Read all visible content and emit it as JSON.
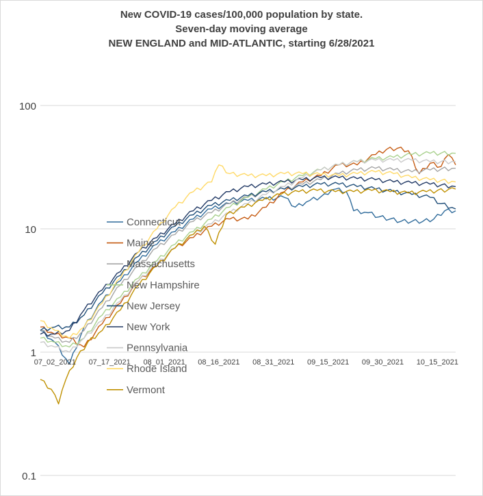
{
  "chart_data": {
    "type": "line",
    "title_lines": [
      "New COVID-19 cases/100,000 population by state.",
      "Seven-day moving average",
      "NEW ENGLAND and MID-ATLANTIC, starting 6/28/2021"
    ],
    "xlabel": "",
    "ylabel": "",
    "y_scale": "log",
    "ylim": [
      0.1,
      100
    ],
    "y_ticks": [
      100,
      10,
      1,
      0.1
    ],
    "y_tick_labels": [
      "100",
      "10",
      "1",
      "0.1"
    ],
    "x_range": [
      "2021-06-28",
      "2021-10-20"
    ],
    "x_tick_dates": [
      "2021-07-02",
      "2021-07-17",
      "2021-08-01",
      "2021-08-16",
      "2021-08-31",
      "2021-09-15",
      "2021-09-30",
      "2021-10-15"
    ],
    "x_tick_labels": [
      "07_02_2021",
      "07_17_2021",
      "08_01_2021",
      "08_16_2021",
      "08_31_2021",
      "09_15_2021",
      "09_30_2021",
      "10_15_2021"
    ],
    "grid": "horizontal",
    "legend_position": "left, inside plot",
    "series": [
      {
        "name": "Connecticut",
        "color": "#2e6a9a",
        "points": [
          [
            "2021-06-28",
            1.5
          ],
          [
            "2021-07-02",
            1.2
          ],
          [
            "2021-07-06",
            0.8
          ],
          [
            "2021-07-10",
            1.6
          ],
          [
            "2021-07-15",
            2.6
          ],
          [
            "2021-07-20",
            3.8
          ],
          [
            "2021-07-25",
            5.5
          ],
          [
            "2021-07-30",
            7.5
          ],
          [
            "2021-08-04",
            9.5
          ],
          [
            "2021-08-09",
            12
          ],
          [
            "2021-08-14",
            14.5
          ],
          [
            "2021-08-19",
            16
          ],
          [
            "2021-08-24",
            17
          ],
          [
            "2021-08-29",
            17.5
          ],
          [
            "2021-09-03",
            18
          ],
          [
            "2021-09-06",
            15
          ],
          [
            "2021-09-10",
            17
          ],
          [
            "2021-09-15",
            19
          ],
          [
            "2021-09-17",
            21
          ],
          [
            "2021-09-20",
            20
          ],
          [
            "2021-09-22",
            14
          ],
          [
            "2021-09-26",
            13.5
          ],
          [
            "2021-09-29",
            12.5
          ],
          [
            "2021-10-02",
            12
          ],
          [
            "2021-10-05",
            11.5
          ],
          [
            "2021-10-08",
            11.5
          ],
          [
            "2021-10-11",
            11.5
          ],
          [
            "2021-10-14",
            12
          ],
          [
            "2021-10-17",
            14
          ],
          [
            "2021-10-20",
            14
          ]
        ]
      },
      {
        "name": "Maine",
        "color": "#c55a11",
        "points": [
          [
            "2021-06-28",
            1.6
          ],
          [
            "2021-07-02",
            1.4
          ],
          [
            "2021-07-06",
            1.3
          ],
          [
            "2021-07-10",
            1.1
          ],
          [
            "2021-07-15",
            1.7
          ],
          [
            "2021-07-20",
            2.5
          ],
          [
            "2021-07-25",
            3.8
          ],
          [
            "2021-07-30",
            5
          ],
          [
            "2021-08-04",
            7
          ],
          [
            "2021-08-09",
            8.5
          ],
          [
            "2021-08-14",
            10.5
          ],
          [
            "2021-08-19",
            12
          ],
          [
            "2021-08-24",
            12
          ],
          [
            "2021-08-29",
            15
          ],
          [
            "2021-09-03",
            20
          ],
          [
            "2021-09-08",
            24
          ],
          [
            "2021-09-13",
            27
          ],
          [
            "2021-09-18",
            33
          ],
          [
            "2021-09-23",
            33
          ],
          [
            "2021-09-28",
            40
          ],
          [
            "2021-10-01",
            44
          ],
          [
            "2021-10-04",
            45
          ],
          [
            "2021-10-07",
            43
          ],
          [
            "2021-10-10",
            28
          ],
          [
            "2021-10-13",
            34
          ],
          [
            "2021-10-16",
            32
          ],
          [
            "2021-10-18",
            40
          ],
          [
            "2021-10-20",
            33
          ]
        ]
      },
      {
        "name": "Massachusetts",
        "color": "#a5a5a5",
        "points": [
          [
            "2021-06-28",
            1.5
          ],
          [
            "2021-07-02",
            1.3
          ],
          [
            "2021-07-06",
            1.2
          ],
          [
            "2021-07-10",
            1.5
          ],
          [
            "2021-07-15",
            2.3
          ],
          [
            "2021-07-20",
            3.5
          ],
          [
            "2021-07-25",
            5
          ],
          [
            "2021-07-30",
            7
          ],
          [
            "2021-08-04",
            9
          ],
          [
            "2021-08-09",
            11.5
          ],
          [
            "2021-08-14",
            13.5
          ],
          [
            "2021-08-19",
            16
          ],
          [
            "2021-08-24",
            18
          ],
          [
            "2021-08-29",
            20
          ],
          [
            "2021-09-03",
            21
          ],
          [
            "2021-09-08",
            23
          ],
          [
            "2021-09-13",
            25
          ],
          [
            "2021-09-18",
            28
          ],
          [
            "2021-09-23",
            30
          ],
          [
            "2021-09-28",
            31
          ],
          [
            "2021-10-03",
            30
          ],
          [
            "2021-10-08",
            29
          ],
          [
            "2021-10-13",
            30
          ],
          [
            "2021-10-20",
            31
          ]
        ]
      },
      {
        "name": "New Hampshire",
        "color": "#a9d18e",
        "points": [
          [
            "2021-06-28",
            1.3
          ],
          [
            "2021-07-02",
            1.2
          ],
          [
            "2021-07-06",
            1.1
          ],
          [
            "2021-07-10",
            1.3
          ],
          [
            "2021-07-15",
            2
          ],
          [
            "2021-07-20",
            2.8
          ],
          [
            "2021-07-25",
            4
          ],
          [
            "2021-07-30",
            5.5
          ],
          [
            "2021-08-04",
            7.5
          ],
          [
            "2021-08-09",
            9.5
          ],
          [
            "2021-08-14",
            12
          ],
          [
            "2021-08-19",
            15
          ],
          [
            "2021-08-24",
            18
          ],
          [
            "2021-08-29",
            21
          ],
          [
            "2021-09-03",
            24
          ],
          [
            "2021-09-08",
            27
          ],
          [
            "2021-09-13",
            30
          ],
          [
            "2021-09-18",
            33
          ],
          [
            "2021-09-23",
            35
          ],
          [
            "2021-09-28",
            37
          ],
          [
            "2021-10-03",
            38
          ],
          [
            "2021-10-08",
            40
          ],
          [
            "2021-10-13",
            41
          ],
          [
            "2021-10-20",
            41
          ]
        ]
      },
      {
        "name": "New Jersey",
        "color": "#1f4e79",
        "points": [
          [
            "2021-06-28",
            1.5
          ],
          [
            "2021-07-02",
            1.6
          ],
          [
            "2021-07-06",
            1.6
          ],
          [
            "2021-07-10",
            2
          ],
          [
            "2021-07-15",
            3
          ],
          [
            "2021-07-20",
            4.2
          ],
          [
            "2021-07-25",
            6
          ],
          [
            "2021-07-30",
            8
          ],
          [
            "2021-08-04",
            10.5
          ],
          [
            "2021-08-09",
            13
          ],
          [
            "2021-08-14",
            15.5
          ],
          [
            "2021-08-19",
            17
          ],
          [
            "2021-08-24",
            18.5
          ],
          [
            "2021-08-29",
            20
          ],
          [
            "2021-09-03",
            21
          ],
          [
            "2021-09-08",
            22
          ],
          [
            "2021-09-13",
            23
          ],
          [
            "2021-09-18",
            23
          ],
          [
            "2021-09-23",
            22
          ],
          [
            "2021-09-28",
            21
          ],
          [
            "2021-10-03",
            20
          ],
          [
            "2021-10-08",
            19
          ],
          [
            "2021-10-13",
            18
          ],
          [
            "2021-10-16",
            16
          ],
          [
            "2021-10-20",
            14.5
          ]
        ]
      },
      {
        "name": "New York",
        "color": "#203864",
        "points": [
          [
            "2021-06-28",
            1.4
          ],
          [
            "2021-07-02",
            1.4
          ],
          [
            "2021-07-06",
            1.5
          ],
          [
            "2021-07-10",
            2.2
          ],
          [
            "2021-07-15",
            3.2
          ],
          [
            "2021-07-20",
            4.5
          ],
          [
            "2021-07-25",
            6.5
          ],
          [
            "2021-07-30",
            8.5
          ],
          [
            "2021-08-04",
            11
          ],
          [
            "2021-08-09",
            14
          ],
          [
            "2021-08-14",
            17
          ],
          [
            "2021-08-19",
            20
          ],
          [
            "2021-08-24",
            22
          ],
          [
            "2021-08-29",
            23
          ],
          [
            "2021-09-03",
            24
          ],
          [
            "2021-09-08",
            25
          ],
          [
            "2021-09-13",
            26
          ],
          [
            "2021-09-18",
            26
          ],
          [
            "2021-09-23",
            25.5
          ],
          [
            "2021-09-28",
            25
          ],
          [
            "2021-10-03",
            24
          ],
          [
            "2021-10-08",
            23.5
          ],
          [
            "2021-10-13",
            23
          ],
          [
            "2021-10-20",
            22
          ]
        ]
      },
      {
        "name": "Pennsylvania",
        "color": "#c9c9c9",
        "points": [
          [
            "2021-06-28",
            1.2
          ],
          [
            "2021-07-02",
            1.1
          ],
          [
            "2021-07-06",
            1.0
          ],
          [
            "2021-07-10",
            1.3
          ],
          [
            "2021-07-15",
            1.8
          ],
          [
            "2021-07-20",
            2.6
          ],
          [
            "2021-07-25",
            3.8
          ],
          [
            "2021-07-30",
            5.2
          ],
          [
            "2021-08-04",
            7
          ],
          [
            "2021-08-09",
            9
          ],
          [
            "2021-08-14",
            11
          ],
          [
            "2021-08-19",
            13.5
          ],
          [
            "2021-08-24",
            16
          ],
          [
            "2021-08-29",
            19
          ],
          [
            "2021-09-03",
            22
          ],
          [
            "2021-09-08",
            26
          ],
          [
            "2021-09-13",
            30
          ],
          [
            "2021-09-18",
            33
          ],
          [
            "2021-09-23",
            35
          ],
          [
            "2021-09-28",
            36
          ],
          [
            "2021-10-03",
            36
          ],
          [
            "2021-10-08",
            36
          ],
          [
            "2021-10-13",
            35
          ],
          [
            "2021-10-20",
            35
          ]
        ]
      },
      {
        "name": "Rhode Island",
        "color": "#ffd966",
        "points": [
          [
            "2021-06-28",
            1.8
          ],
          [
            "2021-07-02",
            1.5
          ],
          [
            "2021-07-06",
            1.3
          ],
          [
            "2021-07-10",
            1.6
          ],
          [
            "2021-07-15",
            2.5
          ],
          [
            "2021-07-20",
            4
          ],
          [
            "2021-07-25",
            6.5
          ],
          [
            "2021-07-30",
            10
          ],
          [
            "2021-08-04",
            15
          ],
          [
            "2021-08-09",
            20
          ],
          [
            "2021-08-14",
            24
          ],
          [
            "2021-08-16",
            33
          ],
          [
            "2021-08-19",
            28
          ],
          [
            "2021-08-24",
            27
          ],
          [
            "2021-08-29",
            27
          ],
          [
            "2021-09-03",
            28
          ],
          [
            "2021-09-08",
            28
          ],
          [
            "2021-09-13",
            27.5
          ],
          [
            "2021-09-18",
            27
          ],
          [
            "2021-09-23",
            28
          ],
          [
            "2021-09-28",
            29
          ],
          [
            "2021-10-03",
            28
          ],
          [
            "2021-10-08",
            26
          ],
          [
            "2021-10-13",
            25
          ],
          [
            "2021-10-20",
            24
          ]
        ]
      },
      {
        "name": "Vermont",
        "color": "#bf9000",
        "points": [
          [
            "2021-06-28",
            0.6
          ],
          [
            "2021-07-01",
            0.5
          ],
          [
            "2021-07-03",
            0.38
          ],
          [
            "2021-07-05",
            0.6
          ],
          [
            "2021-07-08",
            0.9
          ],
          [
            "2021-07-11",
            1.2
          ],
          [
            "2021-07-15",
            1.5
          ],
          [
            "2021-07-20",
            2.2
          ],
          [
            "2021-07-25",
            3.5
          ],
          [
            "2021-07-30",
            5
          ],
          [
            "2021-08-04",
            7
          ],
          [
            "2021-08-09",
            9
          ],
          [
            "2021-08-12",
            10.5
          ],
          [
            "2021-08-15",
            7.5
          ],
          [
            "2021-08-18",
            13
          ],
          [
            "2021-08-23",
            15
          ],
          [
            "2021-08-28",
            17
          ],
          [
            "2021-09-02",
            19
          ],
          [
            "2021-09-07",
            20
          ],
          [
            "2021-09-12",
            20.5
          ],
          [
            "2021-09-17",
            20
          ],
          [
            "2021-09-22",
            20
          ],
          [
            "2021-09-27",
            20.5
          ],
          [
            "2021-10-02",
            20
          ],
          [
            "2021-10-07",
            19.5
          ],
          [
            "2021-10-12",
            20
          ],
          [
            "2021-10-20",
            21
          ]
        ]
      }
    ]
  }
}
